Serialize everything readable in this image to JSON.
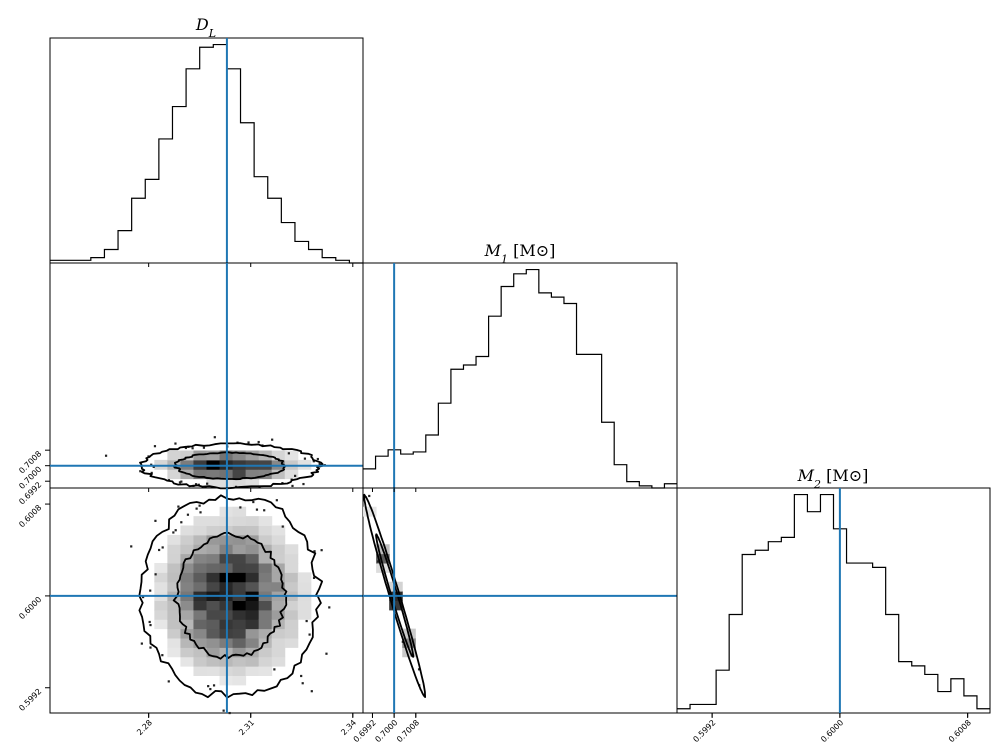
{
  "chart_data": {
    "type": "corner",
    "parameters": [
      {
        "key": "DL",
        "title": "D_L",
        "title_main": "D",
        "title_sub": "L",
        "title_suffix": "",
        "truth": 2.303,
        "range": [
          2.251,
          2.343
        ],
        "ticks": [
          2.28,
          2.31,
          2.34
        ],
        "tick_labels": [
          "2.28",
          "2.31",
          "2.34"
        ],
        "hist": [
          1,
          1,
          1,
          2,
          5,
          12,
          24,
          31,
          46,
          58,
          72,
          80,
          81,
          72,
          52,
          32,
          24,
          15,
          8,
          5,
          2,
          1,
          0
        ]
      },
      {
        "key": "M1",
        "title": "M_1 [M_⊙]",
        "title_main": "M",
        "title_sub": "1",
        "title_suffix": " [M⊙]",
        "truth": 0.7,
        "range": [
          0.69885,
          0.71045
        ],
        "ticks": [
          0.6992,
          0.7,
          0.7008
        ],
        "tick_labels": [
          "0.6992",
          "0.7000",
          "0.7008"
        ],
        "hist": [
          9,
          15,
          18,
          16,
          17,
          25,
          40,
          56,
          58,
          62,
          81,
          95,
          101,
          103,
          92,
          90,
          87,
          63,
          63,
          31,
          11,
          3,
          1,
          0,
          2
        ]
      },
      {
        "key": "M2",
        "title": "M_2 [M_⊙]",
        "title_main": "M",
        "title_sub": "2",
        "title_suffix": " [M⊙]",
        "truth": 0.6,
        "range": [
          0.59898,
          0.60094
        ],
        "ticks": [
          0.5992,
          0.6,
          0.6008
        ],
        "tick_labels": [
          "0.5992",
          "0.6000",
          "0.6008"
        ],
        "hist": [
          1,
          2,
          2,
          10,
          23,
          37,
          38,
          40,
          41,
          51,
          47,
          51,
          43,
          35,
          35,
          34,
          23,
          12,
          11,
          9,
          5,
          8,
          4,
          1
        ]
      }
    ],
    "panels": [
      {
        "id": "DL-M1",
        "x": "DL",
        "y": "M1"
      },
      {
        "id": "DL-M2",
        "x": "DL",
        "y": "M2"
      },
      {
        "id": "M1-M2",
        "x": "M1",
        "y": "M2"
      }
    ],
    "contour_levels": 2,
    "colors": {
      "truth": "#1f77b4",
      "hist": "#000000",
      "density": "#000000"
    }
  }
}
